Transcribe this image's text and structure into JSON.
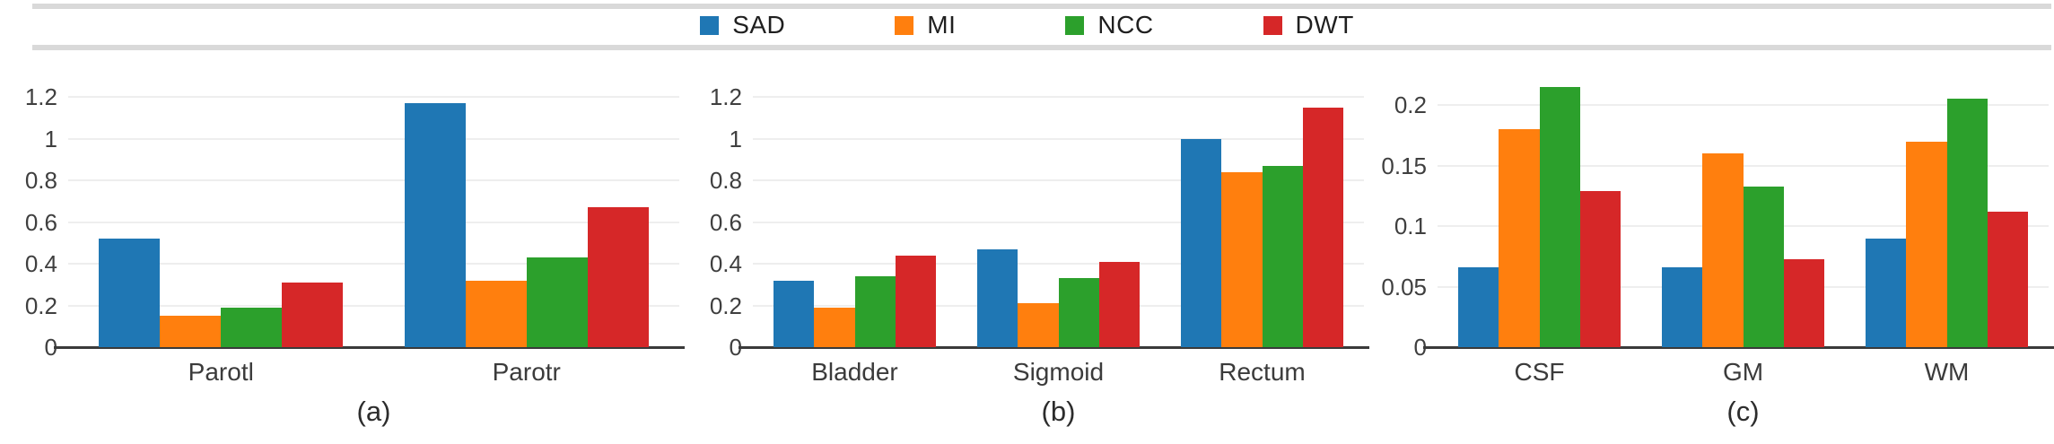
{
  "figure": {
    "legend": [
      {
        "label": "SAD",
        "color": "#1f77b4"
      },
      {
        "label": "MI",
        "color": "#ff7f0e"
      },
      {
        "label": "NCC",
        "color": "#2ca02c"
      },
      {
        "label": "DWT",
        "color": "#d62728"
      }
    ]
  },
  "chart_data": [
    {
      "type": "bar",
      "caption": "(a)",
      "categories": [
        "Parotl",
        "Parotr"
      ],
      "series": [
        {
          "name": "SAD",
          "color": "#1f77b4",
          "values": [
            0.52,
            1.17
          ]
        },
        {
          "name": "MI",
          "color": "#ff7f0e",
          "values": [
            0.15,
            0.32
          ]
        },
        {
          "name": "NCC",
          "color": "#2ca02c",
          "values": [
            0.19,
            0.43
          ]
        },
        {
          "name": "DWT",
          "color": "#d62728",
          "values": [
            0.31,
            0.67
          ]
        }
      ],
      "yticks": [
        0,
        0.2,
        0.4,
        0.6,
        0.8,
        1,
        1.2
      ],
      "ytick_labels": [
        "0",
        "0.2",
        "0.4",
        "0.6",
        "0.8",
        "1",
        "1.2"
      ],
      "ylim": [
        0,
        1.33
      ],
      "grid": true,
      "legend_position": "shared-top"
    },
    {
      "type": "bar",
      "caption": "(b)",
      "categories": [
        "Bladder",
        "Sigmoid",
        "Rectum"
      ],
      "series": [
        {
          "name": "SAD",
          "color": "#1f77b4",
          "values": [
            0.32,
            0.47,
            1.0
          ]
        },
        {
          "name": "MI",
          "color": "#ff7f0e",
          "values": [
            0.19,
            0.21,
            0.84
          ]
        },
        {
          "name": "NCC",
          "color": "#2ca02c",
          "values": [
            0.34,
            0.33,
            0.87
          ]
        },
        {
          "name": "DWT",
          "color": "#d62728",
          "values": [
            0.44,
            0.41,
            1.15
          ]
        }
      ],
      "yticks": [
        0,
        0.2,
        0.4,
        0.6,
        0.8,
        1,
        1.2
      ],
      "ytick_labels": [
        "0",
        "0.2",
        "0.4",
        "0.6",
        "0.8",
        "1",
        "1.2"
      ],
      "ylim": [
        0,
        1.33
      ],
      "grid": true,
      "legend_position": "shared-top"
    },
    {
      "type": "bar",
      "caption": "(c)",
      "categories": [
        "CSF",
        "GM",
        "WM"
      ],
      "series": [
        {
          "name": "SAD",
          "color": "#1f77b4",
          "values": [
            0.066,
            0.066,
            0.09
          ]
        },
        {
          "name": "MI",
          "color": "#ff7f0e",
          "values": [
            0.18,
            0.16,
            0.17
          ]
        },
        {
          "name": "NCC",
          "color": "#2ca02c",
          "values": [
            0.215,
            0.133,
            0.205
          ]
        },
        {
          "name": "DWT",
          "color": "#d62728",
          "values": [
            0.129,
            0.073,
            0.112
          ]
        }
      ],
      "yticks": [
        0,
        0.05,
        0.1,
        0.15,
        0.2
      ],
      "ytick_labels": [
        "0",
        "0.05",
        "0.1",
        "0.15",
        "0.2"
      ],
      "ylim": [
        0,
        0.229
      ],
      "grid": true,
      "legend_position": "shared-top"
    }
  ]
}
